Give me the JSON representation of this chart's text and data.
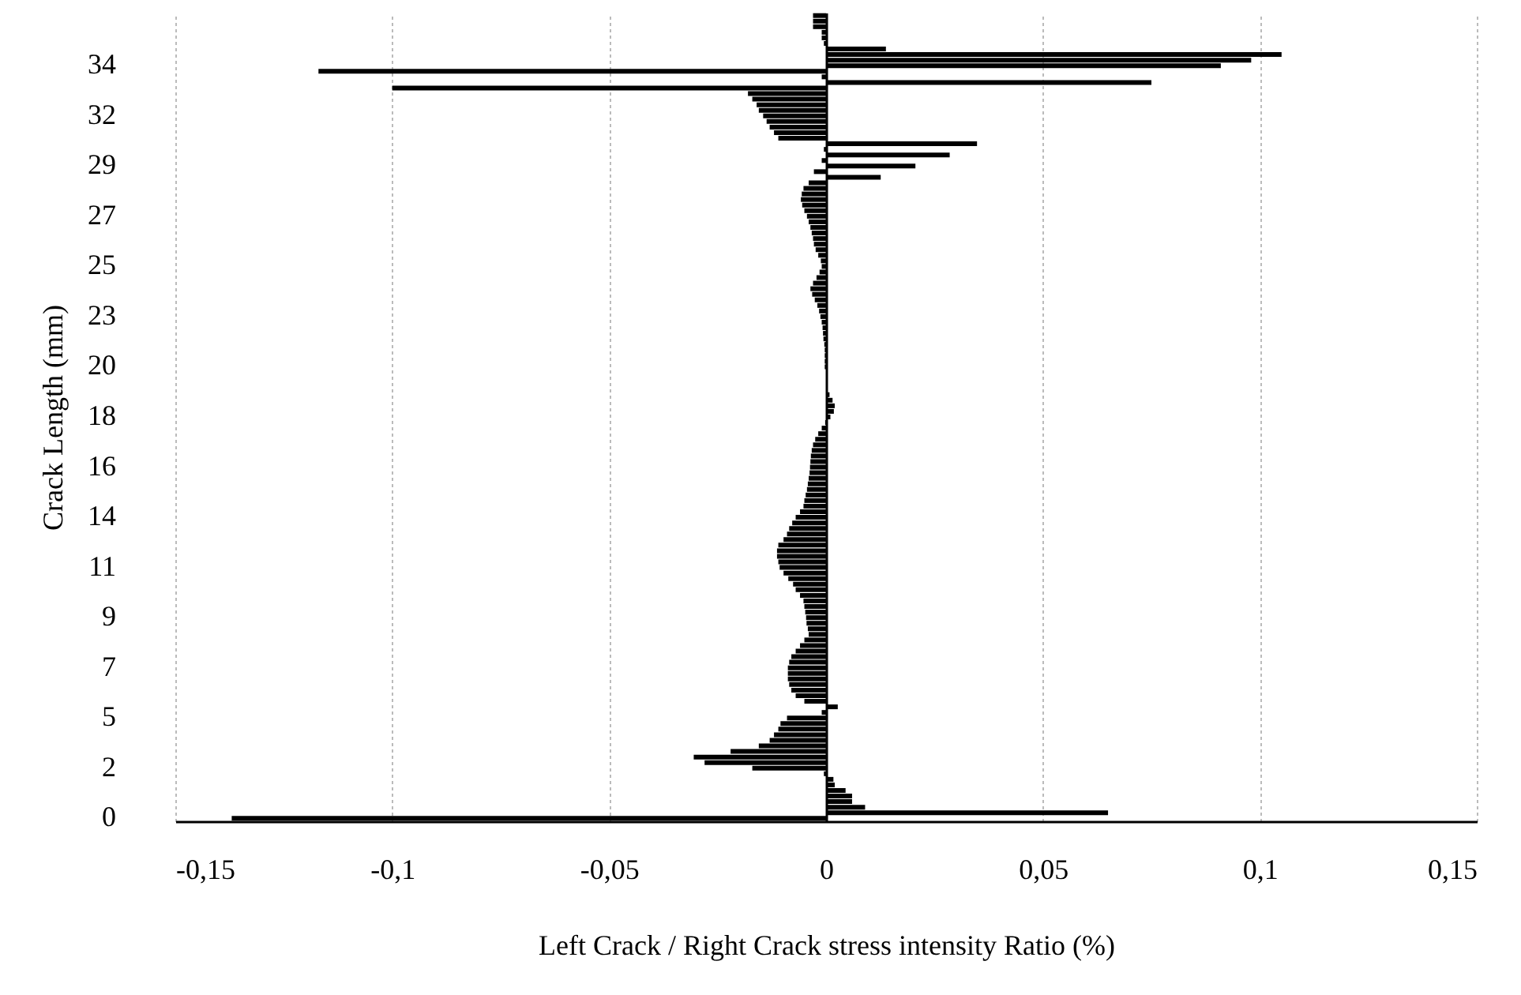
{
  "chart_data": {
    "type": "bar",
    "orientation": "horizontal",
    "xlabel": "Left Crack / Right Crack stress intensity Ratio (%)",
    "ylabel": "Crack Length (mm)",
    "categories": [
      null,
      null,
      null,
      null,
      null,
      null,
      null,
      null,
      null,
      "34",
      null,
      null,
      null,
      null,
      null,
      null,
      null,
      null,
      "32",
      null,
      null,
      null,
      null,
      null,
      null,
      null,
      null,
      "29",
      null,
      null,
      null,
      null,
      null,
      null,
      null,
      null,
      "27",
      null,
      null,
      null,
      null,
      null,
      null,
      null,
      null,
      "25",
      null,
      null,
      null,
      null,
      null,
      null,
      null,
      null,
      "23",
      null,
      null,
      null,
      null,
      null,
      null,
      null,
      null,
      "20",
      null,
      null,
      null,
      null,
      null,
      null,
      null,
      null,
      "18",
      null,
      null,
      null,
      null,
      null,
      null,
      null,
      null,
      "16",
      null,
      null,
      null,
      null,
      null,
      null,
      null,
      null,
      "14",
      null,
      null,
      null,
      null,
      null,
      null,
      null,
      null,
      "11",
      null,
      null,
      null,
      null,
      null,
      null,
      null,
      null,
      "9",
      null,
      null,
      null,
      null,
      null,
      null,
      null,
      null,
      "7",
      null,
      null,
      null,
      null,
      null,
      null,
      null,
      null,
      "5",
      null,
      null,
      null,
      null,
      null,
      null,
      null,
      null,
      "2",
      null,
      null,
      null,
      null,
      null,
      null,
      null,
      null,
      "0"
    ],
    "values": [
      -0.003,
      -0.003,
      -0.003,
      -0.001,
      -0.001,
      -0.0005,
      0.0138,
      0.105,
      0.098,
      0.091,
      -0.117,
      -0.001,
      0.075,
      -0.1,
      -0.018,
      -0.017,
      -0.016,
      -0.0155,
      -0.0145,
      -0.0137,
      -0.013,
      -0.012,
      -0.011,
      0.0348,
      -0.0005,
      0.0285,
      -0.001,
      0.0206,
      -0.0028,
      0.0126,
      -0.004,
      -0.0052,
      -0.0056,
      -0.0058,
      -0.0055,
      -0.005,
      -0.0044,
      -0.004,
      -0.0036,
      -0.0033,
      -0.003,
      -0.0028,
      -0.0024,
      -0.0018,
      -0.0012,
      -0.001,
      -0.0015,
      -0.0022,
      -0.003,
      -0.0036,
      -0.0032,
      -0.0026,
      -0.002,
      -0.0016,
      -0.0013,
      -0.001,
      -0.0008,
      -0.0007,
      -0.0006,
      -0.0004,
      -0.0003,
      -0.0003,
      -0.0003,
      -0.0003,
      null,
      null,
      0.0002,
      null,
      0.0008,
      0.0015,
      0.002,
      0.0018,
      0.001,
      -0.0002,
      -0.001,
      -0.0018,
      -0.0025,
      -0.003,
      -0.0033,
      -0.0035,
      -0.0036,
      -0.0037,
      -0.0038,
      -0.004,
      -0.0042,
      -0.0044,
      -0.0047,
      -0.005,
      -0.0052,
      -0.006,
      -0.007,
      -0.0078,
      -0.0085,
      -0.009,
      -0.0098,
      -0.011,
      -0.0113,
      -0.0113,
      -0.011,
      -0.0107,
      -0.0098,
      -0.0087,
      -0.0076,
      -0.007,
      -0.006,
      -0.0052,
      -0.005,
      -0.0048,
      -0.0046,
      -0.0045,
      -0.0042,
      -0.004,
      -0.005,
      -0.006,
      -0.007,
      -0.008,
      -0.0085,
      -0.0088,
      -0.0088,
      -0.0088,
      -0.0085,
      -0.008,
      -0.007,
      -0.005,
      0.0027,
      -0.001,
      -0.009,
      -0.0105,
      -0.011,
      -0.012,
      -0.013,
      -0.0155,
      -0.022,
      -0.0305,
      -0.028,
      -0.017,
      -0.0005,
      0.0017,
      0.002,
      0.0045,
      0.006,
      0.006,
      0.009,
      0.065,
      -0.137
    ],
    "color": "#000000",
    "xlim": [
      -0.15,
      0.15
    ],
    "xticks": [
      {
        "value": -0.15,
        "label": "-0,15"
      },
      {
        "value": -0.1,
        "label": "-0,1"
      },
      {
        "value": -0.05,
        "label": "-0,05"
      },
      {
        "value": 0,
        "label": "0"
      },
      {
        "value": 0.05,
        "label": "0,05"
      },
      {
        "value": 0.1,
        "label": "0,1"
      },
      {
        "value": 0.15,
        "label": "0,15"
      }
    ],
    "grid": "x"
  }
}
